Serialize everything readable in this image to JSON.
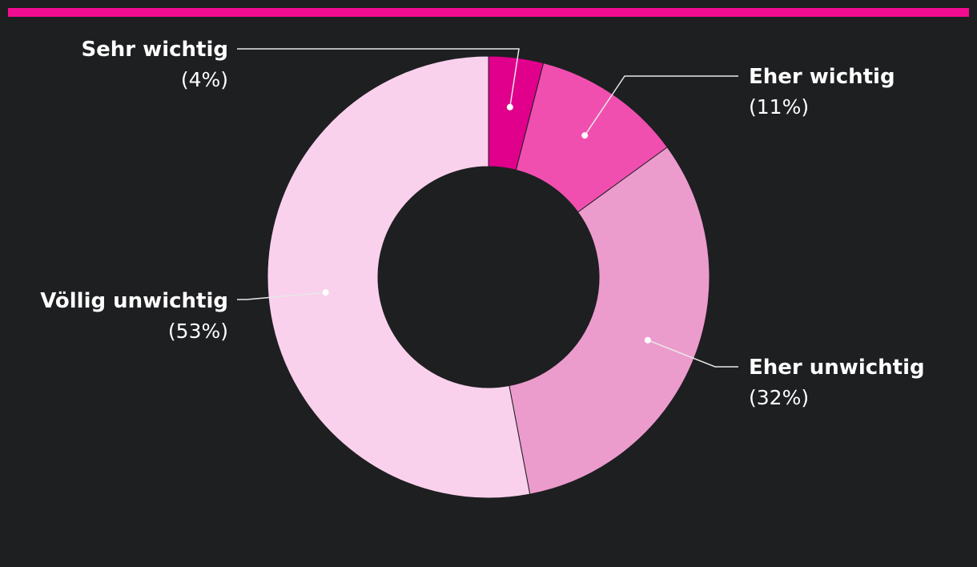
{
  "colors": {
    "background": "#1e1f21",
    "accent_bar": "#f20c91",
    "leader_line": "#e8e8e8"
  },
  "chart_data": {
    "type": "pie",
    "variant": "donut",
    "start_angle_deg": 0,
    "direction": "clockwise",
    "slices": [
      {
        "label": "Sehr wichtig",
        "value": 4,
        "pct_label": "(4%)",
        "color": "#e0008c",
        "label_side": "left"
      },
      {
        "label": "Eher wichtig",
        "value": 11,
        "pct_label": "(11%)",
        "color": "#f04fb0",
        "label_side": "right"
      },
      {
        "label": "Eher unwichtig",
        "value": 32,
        "pct_label": "(32%)",
        "color": "#ec9bcd",
        "label_side": "right"
      },
      {
        "label": "Völlig unwichtig",
        "value": 53,
        "pct_label": "(53%)",
        "color": "#fad1ec",
        "label_side": "left"
      }
    ]
  }
}
